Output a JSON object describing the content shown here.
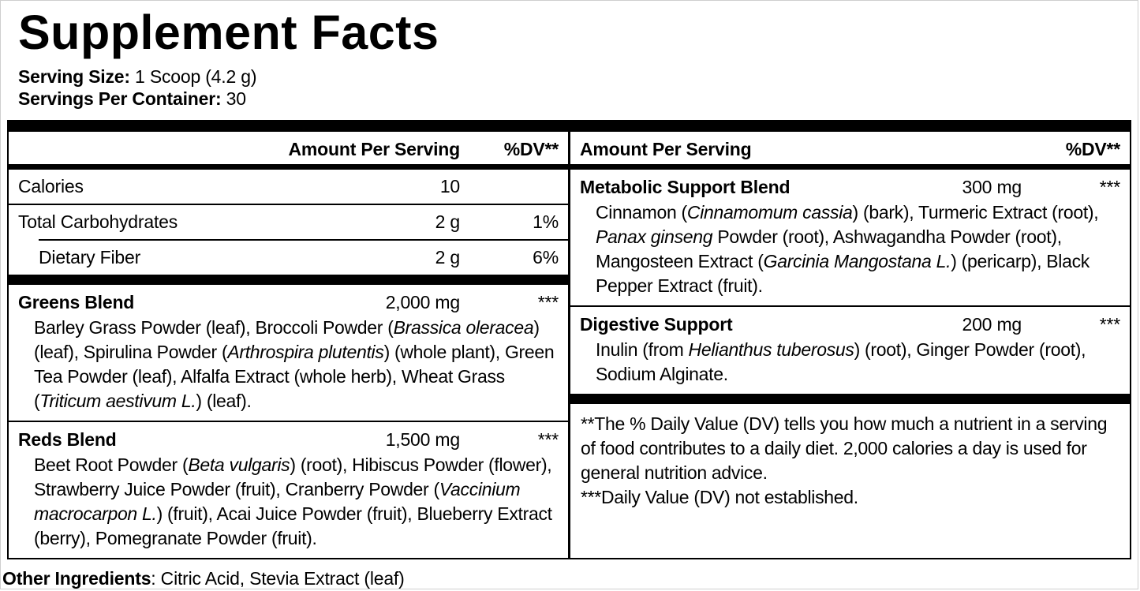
{
  "title": "Supplement Facts",
  "serving": {
    "size_label": "Serving Size:",
    "size_value": " 1 Scoop (4.2 g)",
    "count_label": "Servings Per Container:",
    "count_value": " 30"
  },
  "columns": [
    {
      "side": "left",
      "header": {
        "amount": "Amount Per Serving",
        "dv": "%DV**",
        "amount_align": "right"
      },
      "rows": [
        {
          "type": "nutrient",
          "name": "Calories",
          "amount": "10",
          "dv": "",
          "indent": false
        },
        {
          "type": "sep",
          "indent": 0
        },
        {
          "type": "nutrient",
          "name": "Total Carbohydrates",
          "amount": "2 g",
          "dv": "1%",
          "indent": false
        },
        {
          "type": "sep",
          "indent": 38
        },
        {
          "type": "nutrient",
          "name": "Dietary Fiber",
          "amount": "2 g",
          "dv": "6%",
          "indent": true
        },
        {
          "type": "bar"
        },
        {
          "type": "blend",
          "name": "Greens Blend",
          "amount": "2,000 mg",
          "dv": "***",
          "ingredients": [
            {
              "t": "Barley Grass Powder (leaf), Broccoli Powder ("
            },
            {
              "t": "Brassica oleracea",
              "i": true
            },
            {
              "t": ") (leaf), Spirulina Powder ("
            },
            {
              "t": "Arthrospira plutentis",
              "i": true
            },
            {
              "t": ") (whole plant), Green Tea Powder (leaf), Alfalfa Extract (whole herb), Wheat Grass ("
            },
            {
              "t": "Triticum aestivum L.",
              "i": true
            },
            {
              "t": ") (leaf)."
            }
          ]
        },
        {
          "type": "sep",
          "indent": 0
        },
        {
          "type": "blend",
          "name": "Reds Blend",
          "amount": "1,500 mg",
          "dv": "***",
          "ingredients": [
            {
              "t": "Beet Root Powder ("
            },
            {
              "t": "Beta vulgaris",
              "i": true
            },
            {
              "t": ") (root), Hibiscus Powder (flower), Strawberry Juice Powder (fruit), Cranberry Powder ("
            },
            {
              "t": "Vaccinium macrocarpon L.",
              "i": true
            },
            {
              "t": ") (fruit), Acai Juice Powder (fruit), Blueberry Extract (berry), Pomegranate Powder (fruit)."
            }
          ]
        }
      ]
    },
    {
      "side": "right",
      "header": {
        "amount": "Amount Per Serving",
        "dv": "%DV**",
        "amount_align": "left"
      },
      "rows": [
        {
          "type": "blend",
          "name": "Metabolic Support Blend",
          "amount": "300 mg",
          "dv": "***",
          "ingredients": [
            {
              "t": "Cinnamon ("
            },
            {
              "t": "Cinnamomum cassia",
              "i": true
            },
            {
              "t": ") (bark), Turmeric Extract (root), "
            },
            {
              "t": "Panax ginseng",
              "i": true
            },
            {
              "t": " Powder (root), Ashwagandha Powder (root), Mangosteen Extract ("
            },
            {
              "t": "Garcinia Mangostana L.",
              "i": true
            },
            {
              "t": ") (pericarp), Black Pepper Extract (fruit)."
            }
          ]
        },
        {
          "type": "sep",
          "indent": 0
        },
        {
          "type": "blend",
          "name": "Digestive Support",
          "amount": "200 mg",
          "dv": "***",
          "ingredients": [
            {
              "t": "Inulin (from "
            },
            {
              "t": "Helianthus tuberosus",
              "i": true
            },
            {
              "t": ") (root), Ginger Powder (root), Sodium Alginate."
            }
          ]
        },
        {
          "type": "bar"
        },
        {
          "type": "footnotes",
          "paragraphs": [
            "**The % Daily Value (DV) tells you how much a nutrient in a serving of food contributes to a daily diet. 2,000 calories a day is used for general nutrition advice.",
            "***Daily Value (DV) not established."
          ]
        }
      ]
    }
  ],
  "other_ingredients": {
    "label": "Other Ingredients",
    "value": ": Citric Acid, Stevia Extract (leaf)"
  }
}
